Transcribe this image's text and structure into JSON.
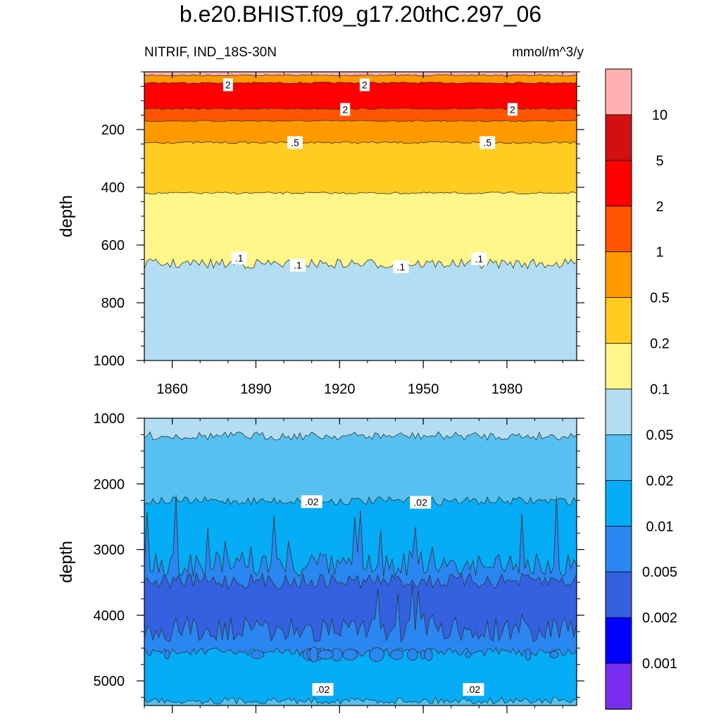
{
  "title": "b.e20.BHIST.f09_g17.20thC.297_06",
  "subtitle_left": "NITRIF, IND_18S-30N",
  "units": "mmol/m^3/y",
  "chart_data": [
    {
      "type": "heatmap",
      "panel": "upper",
      "ylabel": "depth",
      "y_reversed": true,
      "xlim": [
        1850,
        2005
      ],
      "ylim": [
        0,
        1000
      ],
      "x_ticks": [
        1860,
        1890,
        1920,
        1950,
        1980
      ],
      "y_ticks": [
        200,
        400,
        600,
        800,
        1000
      ],
      "bands": [
        {
          "from": 0,
          "to": 12,
          "fill": "#FFB0B0"
        },
        {
          "from": 12,
          "to": 38,
          "fill": "#FF9900"
        },
        {
          "from": 38,
          "to": 128,
          "fill": "#FF0000"
        },
        {
          "from": 128,
          "to": 170,
          "fill": "#FF5500"
        },
        {
          "from": 170,
          "to": 245,
          "fill": "#FF9900"
        },
        {
          "from": 245,
          "to": 420,
          "fill": "#FFCC22"
        },
        {
          "from": 420,
          "to": 665,
          "fill": "#FFF68A"
        },
        {
          "from": 665,
          "to": 1000,
          "fill": "#B3DDF2"
        }
      ],
      "contour_labels": [
        {
          "text": "2",
          "x": 1880,
          "y": 45
        },
        {
          "text": "2",
          "x": 1929,
          "y": 45
        },
        {
          "text": "2",
          "x": 1922,
          "y": 130
        },
        {
          "text": "2",
          "x": 1982,
          "y": 130
        },
        {
          "text": ".5",
          "x": 1904,
          "y": 245
        },
        {
          "text": ".5",
          "x": 1973,
          "y": 245
        },
        {
          "text": ".1",
          "x": 1884,
          "y": 645
        },
        {
          "text": ".1",
          "x": 1905,
          "y": 670
        },
        {
          "text": ".1",
          "x": 1942,
          "y": 675
        },
        {
          "text": ".1",
          "x": 1970,
          "y": 648
        }
      ]
    },
    {
      "type": "heatmap",
      "panel": "lower",
      "ylabel": "depth",
      "y_reversed": true,
      "xlim": [
        1850,
        2005
      ],
      "ylim": [
        1000,
        5375
      ],
      "y_ticks": [
        1000,
        2000,
        3000,
        4000,
        5000
      ],
      "bands": [
        {
          "from": 1000,
          "to": 1270,
          "fill": "#B3DDF2"
        },
        {
          "from": 1270,
          "to": 2260,
          "fill": "#56C1F0"
        },
        {
          "from": 2260,
          "to": 3220,
          "fill": "#06ACF5"
        },
        {
          "from": 3220,
          "to": 3480,
          "fill": "#2A86F0"
        },
        {
          "from": 3480,
          "to": 4220,
          "fill": "#3361E0"
        },
        {
          "from": 4220,
          "to": 4560,
          "fill": "#2A86F0"
        },
        {
          "from": 4560,
          "to": 5300,
          "fill": "#06ACF5"
        },
        {
          "from": 5300,
          "to": 5375,
          "fill": "#56C1F0"
        }
      ],
      "contour_labels": [
        {
          "text": ".02",
          "x": 1910,
          "y": 2270
        },
        {
          "text": ".02",
          "x": 1949,
          "y": 2280
        },
        {
          "text": ".02",
          "x": 1914,
          "y": 5130
        },
        {
          "text": ".02",
          "x": 1968,
          "y": 5130
        }
      ]
    }
  ],
  "colorbar": {
    "colors": [
      "#FFB0B0",
      "#D21010",
      "#FF0000",
      "#FF5500",
      "#FF9900",
      "#FFCC22",
      "#FFF68A",
      "#B3DDF2",
      "#56C1F0",
      "#06ACF5",
      "#2A86F0",
      "#3361E0",
      "#0000FF",
      "#7A2EF0"
    ],
    "labels": [
      "10",
      "5",
      "2",
      "1",
      "0.5",
      "0.2",
      "0.1",
      "0.05",
      "0.02",
      "0.01",
      "0.005",
      "0.002",
      "0.001"
    ]
  }
}
